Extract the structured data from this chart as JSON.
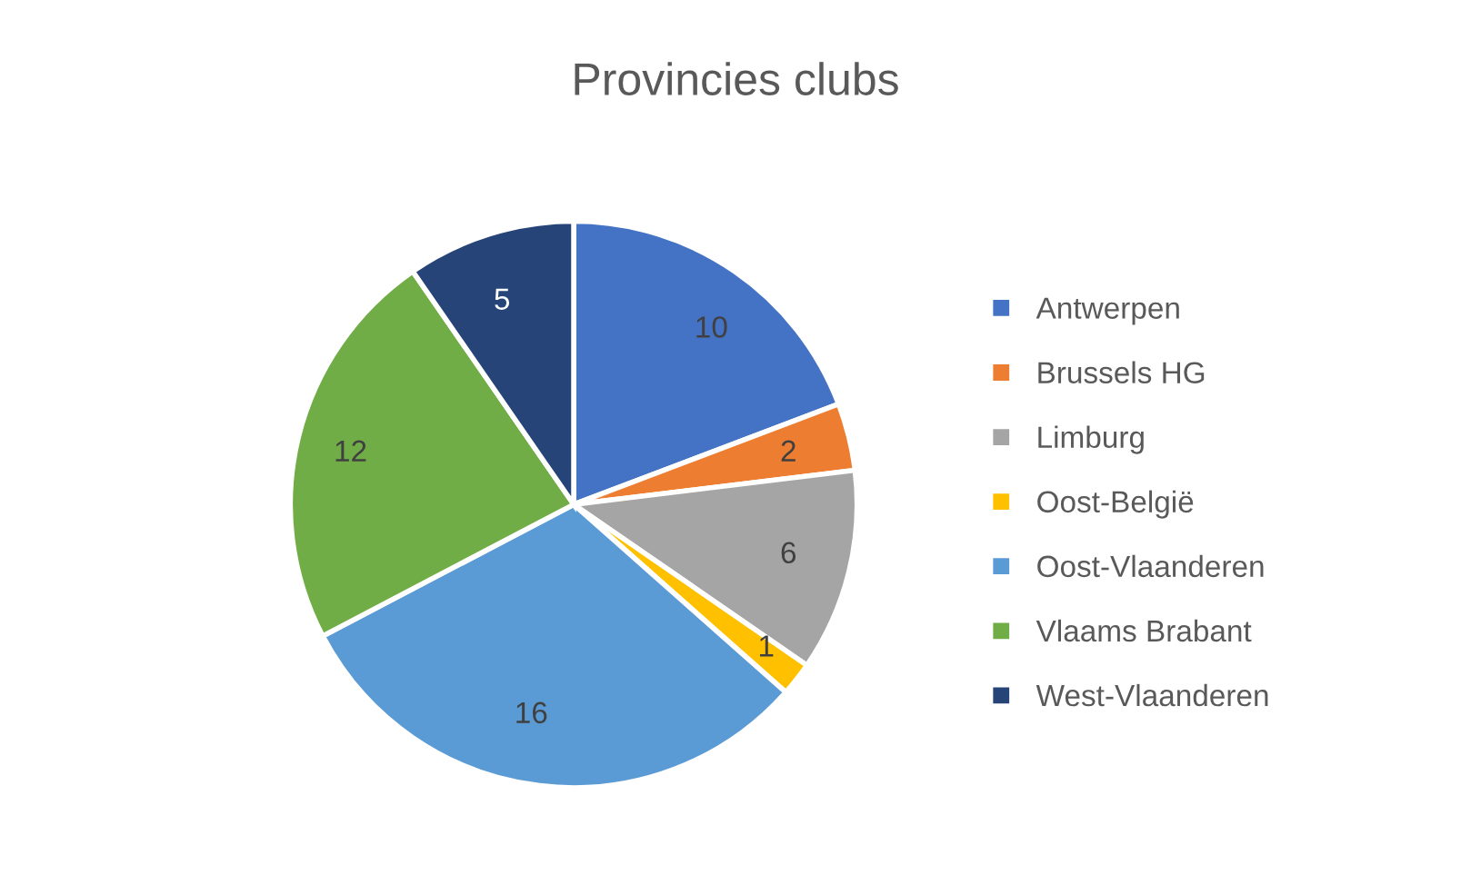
{
  "chart_data": {
    "type": "pie",
    "title": "Provincies clubs",
    "categories": [
      "Antwerpen",
      "Brussels HG",
      "Limburg",
      "Oost-België",
      "Oost-Vlaanderen",
      "Vlaams Brabant",
      "West-Vlaanderen"
    ],
    "values": [
      10,
      2,
      6,
      1,
      16,
      12,
      5
    ],
    "colors": [
      "#4472c4",
      "#ed7d31",
      "#a5a5a5",
      "#ffc000",
      "#5b9bd5",
      "#70ad47",
      "#264478"
    ],
    "data_labels": true,
    "legend": "right"
  }
}
